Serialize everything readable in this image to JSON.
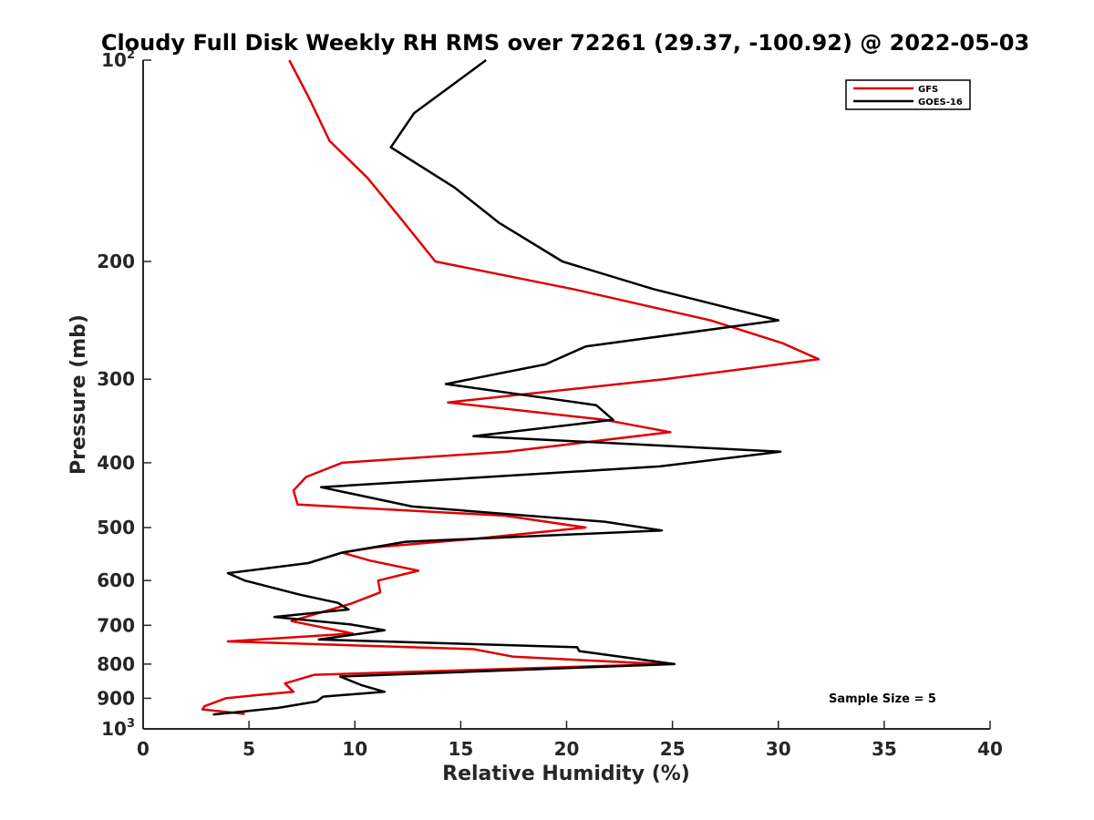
{
  "chart_data": {
    "type": "line",
    "title": "Cloudy Full Disk Weekly RH RMS over 72261 (29.37, -100.92) @ 2022-05-03",
    "xlabel": "Relative Humidity (%)",
    "ylabel": "Pressure (mb)",
    "xlim": [
      0,
      40
    ],
    "ylim": [
      100,
      1000
    ],
    "y_scale": "log",
    "y_reversed": true,
    "x_ticks": [
      0,
      5,
      10,
      15,
      20,
      25,
      30,
      35,
      40
    ],
    "y_ticks": [
      {
        "value": 100,
        "label": "10",
        "sup": "2"
      },
      {
        "value": 200,
        "label": "200"
      },
      {
        "value": 300,
        "label": "300"
      },
      {
        "value": 400,
        "label": "400"
      },
      {
        "value": 500,
        "label": "500"
      },
      {
        "value": 600,
        "label": "600"
      },
      {
        "value": 700,
        "label": "700"
      },
      {
        "value": 800,
        "label": "800"
      },
      {
        "value": 900,
        "label": "900"
      },
      {
        "value": 1000,
        "label": "10",
        "sup": "3"
      }
    ],
    "grid": false,
    "legend_position": "top-right",
    "annotation": "Sample Size = 5",
    "series": [
      {
        "name": "GFS",
        "color": "#e00000",
        "points": [
          [
            6.9,
            100
          ],
          [
            7.9,
            115
          ],
          [
            8.8,
            132
          ],
          [
            10.6,
            150
          ],
          [
            12.2,
            173
          ],
          [
            13.8,
            200
          ],
          [
            20.3,
            220
          ],
          [
            26.8,
            245
          ],
          [
            30.2,
            265
          ],
          [
            31.9,
            280
          ],
          [
            24.6,
            300
          ],
          [
            14.4,
            325
          ],
          [
            21.8,
            345
          ],
          [
            24.9,
            360
          ],
          [
            17.2,
            385
          ],
          [
            9.4,
            400
          ],
          [
            7.7,
            420
          ],
          [
            7.1,
            440
          ],
          [
            7.3,
            462
          ],
          [
            17.1,
            480
          ],
          [
            20.9,
            500
          ],
          [
            15.6,
            520
          ],
          [
            11.0,
            535
          ],
          [
            9.4,
            545
          ],
          [
            10.7,
            560
          ],
          [
            13.0,
            580
          ],
          [
            11.1,
            600
          ],
          [
            11.2,
            625
          ],
          [
            9.8,
            650
          ],
          [
            7.0,
            690
          ],
          [
            9.9,
            720
          ],
          [
            4.0,
            740
          ],
          [
            15.6,
            760
          ],
          [
            17.5,
            780
          ],
          [
            24.6,
            800
          ],
          [
            8.1,
            830
          ],
          [
            6.7,
            855
          ],
          [
            7.1,
            880
          ],
          [
            5.4,
            890
          ],
          [
            3.9,
            900
          ],
          [
            2.9,
            925
          ],
          [
            2.8,
            935
          ],
          [
            4.8,
            950
          ]
        ]
      },
      {
        "name": "GOES-16",
        "color": "#000000",
        "points": [
          [
            16.2,
            100
          ],
          [
            12.8,
            120
          ],
          [
            11.7,
            135
          ],
          [
            14.7,
            155
          ],
          [
            16.8,
            175
          ],
          [
            19.8,
            200
          ],
          [
            24.1,
            220
          ],
          [
            30.0,
            245
          ],
          [
            20.9,
            268
          ],
          [
            19.0,
            285
          ],
          [
            14.3,
            305
          ],
          [
            21.4,
            328
          ],
          [
            22.2,
            345
          ],
          [
            15.6,
            365
          ],
          [
            30.1,
            385
          ],
          [
            24.4,
            405
          ],
          [
            8.4,
            435
          ],
          [
            12.7,
            465
          ],
          [
            21.8,
            490
          ],
          [
            24.5,
            505
          ],
          [
            12.4,
            525
          ],
          [
            9.4,
            545
          ],
          [
            7.8,
            565
          ],
          [
            4.0,
            585
          ],
          [
            4.8,
            600
          ],
          [
            7.4,
            630
          ],
          [
            9.2,
            648
          ],
          [
            9.7,
            663
          ],
          [
            6.2,
            680
          ],
          [
            9.8,
            698
          ],
          [
            11.4,
            712
          ],
          [
            8.3,
            735
          ],
          [
            20.5,
            755
          ],
          [
            20.6,
            765
          ],
          [
            25.1,
            800
          ],
          [
            9.3,
            835
          ],
          [
            10.3,
            860
          ],
          [
            11.4,
            880
          ],
          [
            8.5,
            895
          ],
          [
            8.2,
            910
          ],
          [
            6.4,
            930
          ],
          [
            3.3,
            952
          ]
        ]
      }
    ]
  }
}
